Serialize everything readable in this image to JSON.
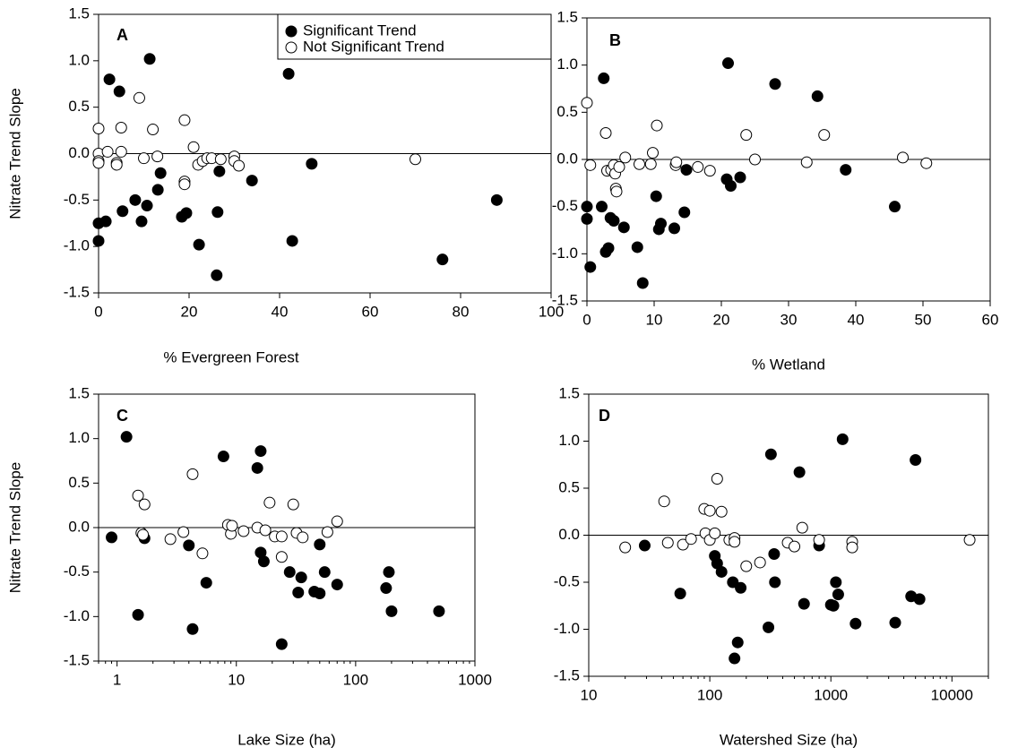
{
  "chart_data": [
    {
      "type": "scatter",
      "panel_label": "A",
      "xlabel": "% Evergreen Forest",
      "ylabel": "Nitrate Trend Slope",
      "xlim": [
        0,
        100
      ],
      "xticks": [
        0,
        20,
        40,
        60,
        80,
        100
      ],
      "ylim": [
        -1.5,
        1.5
      ],
      "yticks": [
        -1.5,
        {
          "value": -1,
          "label": "-1.0"
        },
        -0.5,
        {
          "value": 0,
          "label": "0.0"
        },
        0.5,
        {
          "value": 1,
          "label": "1.0"
        },
        1.5
      ],
      "reference_line": 0,
      "legend": "upper right",
      "series": [
        {
          "name": "Significant Trend",
          "color": "#000000",
          "marker": "filled",
          "x": [
            2.4,
            4.6,
            11.3,
            42,
            0,
            1.6,
            0,
            5.3,
            8.1,
            9.5,
            10.7,
            13.1,
            13.7,
            18.4,
            19.4,
            22.2,
            26.7,
            26.3,
            26.1,
            33.9,
            42.8,
            47.1,
            76,
            88
          ],
          "values": [
            0.8,
            0.67,
            1.02,
            0.86,
            -0.75,
            -0.73,
            -0.94,
            -0.62,
            -0.5,
            -0.73,
            -0.56,
            -0.39,
            -0.21,
            -0.68,
            -0.64,
            -0.98,
            -0.19,
            -0.63,
            -1.31,
            -0.29,
            -0.94,
            -0.11,
            -1.14,
            -0.5
          ]
        },
        {
          "name": "Not Significant Trend",
          "color": "#000000",
          "marker": "open",
          "x": [
            0,
            0,
            0,
            0,
            2,
            4,
            4,
            5,
            5,
            9,
            10,
            12,
            13,
            19,
            19,
            19,
            21,
            22,
            23,
            24,
            25,
            27,
            30,
            30,
            31,
            70
          ],
          "values": [
            0.27,
            0,
            -0.08,
            -0.1,
            0.02,
            -0.1,
            -0.12,
            0.28,
            0.02,
            0.6,
            -0.05,
            0.26,
            -0.03,
            0.36,
            -0.3,
            -0.33,
            0.07,
            -0.12,
            -0.08,
            -0.05,
            -0.05,
            -0.06,
            -0.03,
            -0.08,
            -0.13,
            -0.06
          ]
        }
      ]
    },
    {
      "type": "scatter",
      "panel_label": "B",
      "xlabel": "% Wetland",
      "xlim": [
        0,
        60
      ],
      "xticks": [
        0,
        10,
        20,
        30,
        40,
        50,
        60
      ],
      "ylim": [
        -1.5,
        1.5
      ],
      "yticks": [
        -1.5,
        {
          "value": -1,
          "label": "-1.0"
        },
        -0.5,
        {
          "value": 0,
          "label": "0.0"
        },
        0.5,
        {
          "value": 1,
          "label": "1.0"
        },
        1.5
      ],
      "reference_line": 0,
      "series": [
        {
          "color": "#000000",
          "marker": "filled",
          "x": [
            0,
            0,
            0.5,
            2.5,
            2.2,
            2.8,
            3.2,
            3.5,
            4,
            5.5,
            7.5,
            8.3,
            10.3,
            10.7,
            11,
            13,
            14.5,
            14.8,
            21,
            20.8,
            21.4,
            22.8,
            28,
            34.3,
            38.5,
            45.8
          ],
          "values": [
            -0.5,
            -0.63,
            -1.14,
            0.86,
            -0.5,
            -0.98,
            -0.94,
            -0.62,
            -0.65,
            -0.72,
            -0.93,
            -1.31,
            -0.39,
            -0.74,
            -0.68,
            -0.73,
            -0.56,
            -0.11,
            1.02,
            -0.21,
            -0.28,
            -0.19,
            0.8,
            0.67,
            -0.11,
            -0.5
          ]
        },
        {
          "color": "#000000",
          "marker": "open",
          "x": [
            0,
            0.5,
            2.8,
            3,
            3.6,
            4,
            4.2,
            4.3,
            4.4,
            4.8,
            5.7,
            7.8,
            9.5,
            9.8,
            10.4,
            13.2,
            13.3,
            16.5,
            18.3,
            23.7,
            25,
            32.7,
            35.3,
            47,
            50.5
          ],
          "values": [
            0.6,
            -0.06,
            0.28,
            -0.12,
            -0.11,
            -0.06,
            -0.15,
            -0.31,
            -0.34,
            -0.08,
            0.02,
            -0.05,
            -0.05,
            0.07,
            0.36,
            -0.06,
            -0.03,
            -0.08,
            -0.12,
            0.26,
            0,
            -0.03,
            0.26,
            0.02,
            -0.04
          ]
        }
      ]
    },
    {
      "type": "scatter",
      "panel_label": "C",
      "xlabel": "Lake Size (ha)",
      "ylabel": "Nitrate Trend Slope",
      "xscale": "log",
      "xlim": [
        0.7,
        1000
      ],
      "xticks": [
        1,
        10,
        100,
        1000
      ],
      "ylim": [
        -1.5,
        1.5
      ],
      "yticks": [
        -1.5,
        {
          "value": -1,
          "label": "-1.0"
        },
        -0.5,
        {
          "value": 0,
          "label": "0.0"
        },
        0.5,
        {
          "value": 1,
          "label": "1.0"
        },
        1.5
      ],
      "reference_line": 0,
      "series": [
        {
          "color": "#000000",
          "marker": "filled",
          "x": [
            0.9,
            1.2,
            1.5,
            1.7,
            4,
            4.3,
            5.6,
            7.8,
            15,
            16,
            16,
            17,
            24,
            28,
            33,
            35,
            45,
            50,
            50,
            55,
            70,
            180,
            190,
            200,
            500
          ],
          "values": [
            -0.11,
            1.02,
            -0.98,
            -0.12,
            -0.2,
            -1.14,
            -0.62,
            0.8,
            0.67,
            0.86,
            -0.28,
            -0.38,
            -1.31,
            -0.5,
            -0.73,
            -0.56,
            -0.72,
            -0.74,
            -0.19,
            -0.5,
            -0.64,
            -0.68,
            -0.5,
            -0.94,
            -0.94
          ]
        },
        {
          "color": "#000000",
          "marker": "open",
          "x": [
            1.5,
            1.7,
            1.6,
            1.65,
            2.8,
            3.6,
            4.3,
            5.2,
            8.5,
            9,
            9.2,
            11.5,
            15,
            17.5,
            19,
            21,
            24,
            24,
            30,
            32,
            36,
            58,
            70
          ],
          "values": [
            0.36,
            0.26,
            -0.06,
            -0.08,
            -0.13,
            -0.05,
            0.6,
            -0.29,
            0.03,
            -0.07,
            0.02,
            -0.04,
            0,
            -0.03,
            0.28,
            -0.1,
            -0.1,
            -0.33,
            0.26,
            -0.06,
            -0.11,
            -0.05,
            0.07
          ]
        }
      ]
    },
    {
      "type": "scatter",
      "panel_label": "D",
      "xlabel": "Watershed Size (ha)",
      "xscale": "log",
      "xlim": [
        10,
        20000
      ],
      "xticks": [
        10,
        100,
        1000,
        10000
      ],
      "ylim": [
        -1.5,
        1.5
      ],
      "yticks": [
        -1.5,
        {
          "value": -1,
          "label": "-1.0"
        },
        -0.5,
        {
          "value": 0,
          "label": "0.0"
        },
        0.5,
        {
          "value": 1,
          "label": "1.0"
        },
        1.5
      ],
      "reference_line": 0,
      "series": [
        {
          "color": "#000000",
          "marker": "filled",
          "x": [
            29,
            57,
            110,
            115,
            125,
            155,
            160,
            170,
            180,
            305,
            320,
            340,
            345,
            600,
            550,
            800,
            1000,
            1050,
            1100,
            1150,
            1250,
            1600,
            3400,
            4600,
            5000,
            5400
          ],
          "values": [
            -0.11,
            -0.62,
            -0.22,
            -0.3,
            -0.39,
            -0.5,
            -1.31,
            -1.14,
            -0.56,
            -0.98,
            0.86,
            -0.2,
            -0.5,
            -0.73,
            0.67,
            -0.11,
            -0.74,
            -0.75,
            -0.5,
            -0.63,
            1.02,
            -0.94,
            -0.93,
            -0.65,
            0.8,
            -0.68
          ]
        },
        {
          "color": "#000000",
          "marker": "open",
          "x": [
            20,
            42,
            45,
            60,
            70,
            90,
            92,
            100,
            100,
            110,
            115,
            125,
            145,
            160,
            160,
            200,
            260,
            440,
            500,
            580,
            800,
            1500,
            1500,
            14000
          ],
          "values": [
            -0.13,
            0.36,
            -0.08,
            -0.1,
            -0.04,
            0.28,
            0.02,
            0.26,
            -0.05,
            0.02,
            0.6,
            0.25,
            -0.05,
            -0.03,
            -0.07,
            -0.33,
            -0.29,
            -0.08,
            -0.12,
            0.08,
            -0.05,
            -0.07,
            -0.13,
            -0.05
          ]
        }
      ]
    }
  ]
}
